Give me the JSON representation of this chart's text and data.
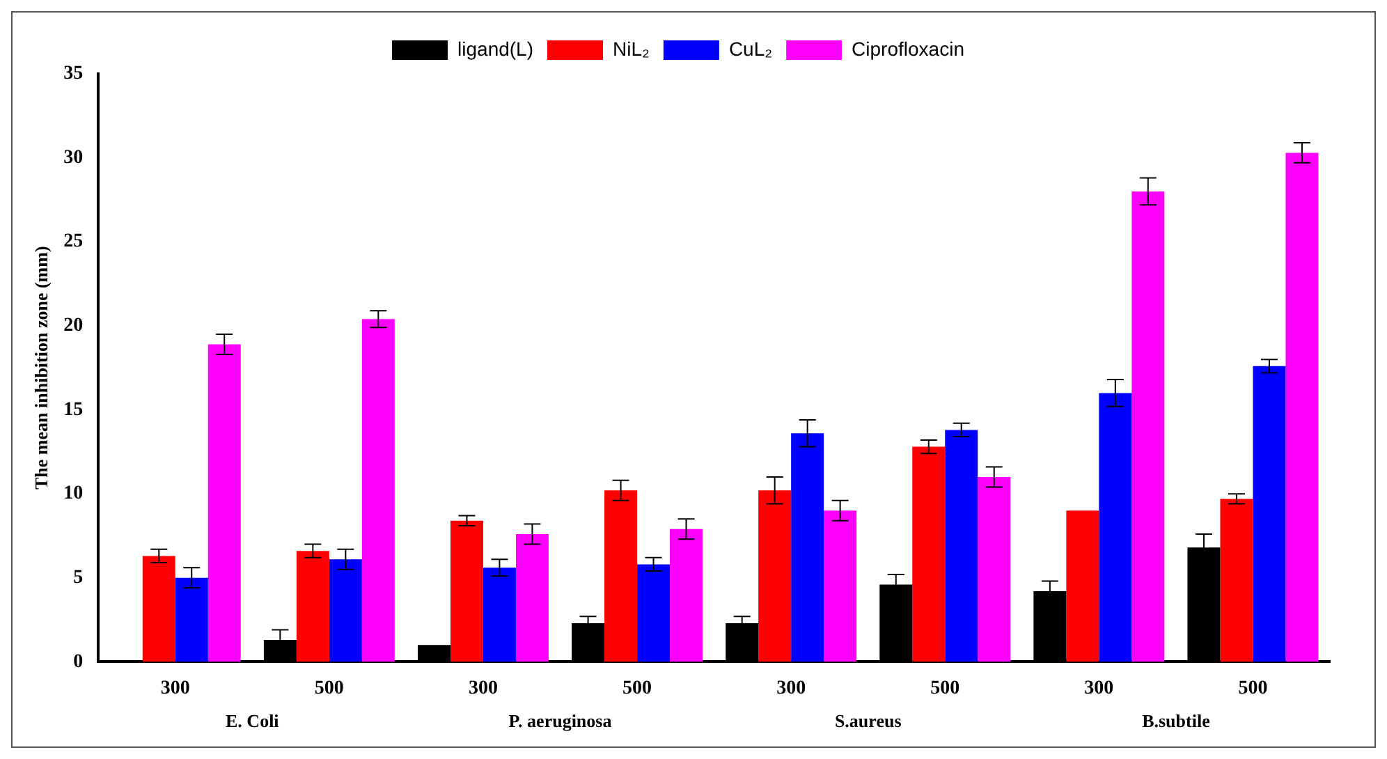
{
  "chart_data": {
    "type": "bar",
    "ylabel": "The mean inhibition zone (mm)",
    "categories": [
      "300",
      "500",
      "300",
      "500",
      "300",
      "500",
      "300",
      "500"
    ],
    "annotations": [
      "E. Coli",
      "P. aeruginosa",
      "S.aureus",
      "B.subtile"
    ],
    "series": [
      {
        "name": "ligand(L)",
        "color": "#000000",
        "values": [
          null,
          1.3,
          1.0,
          2.3,
          2.3,
          4.6,
          4.2,
          6.8
        ],
        "errors": [
          null,
          0.6,
          null,
          0.4,
          0.4,
          0.6,
          0.6,
          0.8
        ]
      },
      {
        "name": "NiL₂",
        "color": "#ff0000",
        "values": [
          6.3,
          6.6,
          8.4,
          10.2,
          10.2,
          12.8,
          9.0,
          9.7
        ],
        "errors": [
          0.4,
          0.4,
          0.3,
          0.6,
          0.8,
          0.4,
          null,
          0.3
        ]
      },
      {
        "name": "CuL₂",
        "color": "#0000ff",
        "values": [
          5.0,
          6.1,
          5.6,
          5.8,
          13.6,
          13.8,
          16.0,
          17.6
        ],
        "errors": [
          0.6,
          0.6,
          0.5,
          0.4,
          0.8,
          0.4,
          0.8,
          0.4
        ]
      },
      {
        "name": "Ciprofloxacin",
        "color": "#ff00ff",
        "values": [
          18.9,
          20.4,
          7.6,
          7.9,
          9.0,
          11.0,
          28.0,
          30.3
        ],
        "errors": [
          0.6,
          0.5,
          0.6,
          0.6,
          0.6,
          0.6,
          0.8,
          0.6
        ]
      }
    ],
    "ylim": [
      0,
      35
    ],
    "yticks": [
      0,
      5,
      10,
      15,
      20,
      25,
      30,
      35
    ],
    "grid": false,
    "legend": "top"
  }
}
